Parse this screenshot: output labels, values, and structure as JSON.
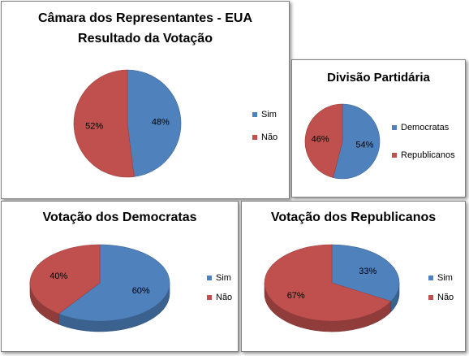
{
  "colors": {
    "blue": "#4f81bd",
    "red": "#c0504d",
    "blue_dark": "#3a6290",
    "red_dark": "#93403e"
  },
  "chart_data": [
    {
      "type": "pie",
      "title": "Câmara dos Representantes - EUA\nResultado da Votação",
      "slices": [
        {
          "label": "Sim",
          "value": 48,
          "color": "#4f81bd",
          "data_label": "48%"
        },
        {
          "label": "Não",
          "value": 52,
          "color": "#c0504d",
          "data_label": "52%"
        }
      ],
      "legend_position": "right",
      "style": "2d"
    },
    {
      "type": "pie",
      "title": "Divisão Partidária",
      "slices": [
        {
          "label": "Democratas",
          "value": 54,
          "color": "#4f81bd",
          "data_label": "54%"
        },
        {
          "label": "Republicanos",
          "value": 46,
          "color": "#c0504d",
          "data_label": "46%"
        }
      ],
      "legend_position": "right",
      "style": "2d"
    },
    {
      "type": "pie",
      "title": "Votação dos Democratas",
      "slices": [
        {
          "label": "Sim",
          "value": 60,
          "color": "#4f81bd",
          "data_label": "60%"
        },
        {
          "label": "Não",
          "value": 40,
          "color": "#c0504d",
          "data_label": "40%"
        }
      ],
      "legend_position": "right",
      "style": "3d"
    },
    {
      "type": "pie",
      "title": "Votação dos Republicanos",
      "slices": [
        {
          "label": "Sim",
          "value": 33,
          "color": "#4f81bd",
          "data_label": "33%"
        },
        {
          "label": "Não",
          "value": 67,
          "color": "#c0504d",
          "data_label": "67%"
        }
      ],
      "legend_position": "right",
      "style": "3d"
    }
  ]
}
